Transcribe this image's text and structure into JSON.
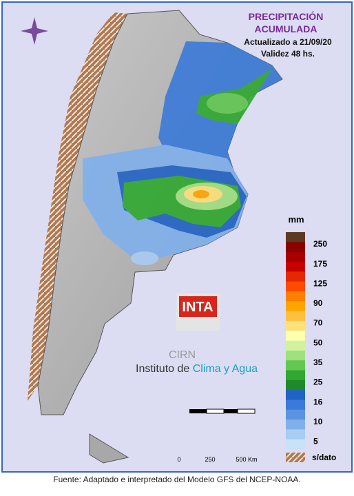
{
  "header": {
    "title_line1": "PRECIPITACIÓN",
    "title_line2": "ACUMULADA",
    "updated": "Actualizado a 21/09/20",
    "validity": "Validez 48 hs."
  },
  "legend": {
    "unit": "mm",
    "labels": [
      "250",
      "175",
      "125",
      "90",
      "70",
      "50",
      "35",
      "25",
      "16",
      "10",
      "5"
    ],
    "colors": [
      "#5c3a21",
      "#8b0000",
      "#a80000",
      "#c80000",
      "#e62800",
      "#ff4a00",
      "#ff7f00",
      "#ffa500",
      "#ffc040",
      "#ffe07a",
      "#ffffb0",
      "#d2f2a0",
      "#a0e080",
      "#62c852",
      "#30a830",
      "#1f8a2a",
      "#2262c4",
      "#3a7ad8",
      "#5a94e0",
      "#80b0ec",
      "#a8ccf2",
      "#c8e2f8"
    ],
    "no_data": "s/dato"
  },
  "scale": {
    "labels": [
      "0",
      "250",
      "500 Km"
    ]
  },
  "logos": {
    "inta": "INTA",
    "cirn": "CIRN",
    "institute_a": "Instituto de ",
    "institute_b": "Clima y Agua"
  },
  "footer": "Fuente: Adaptado e interpretado del Modelo GFS del NCEP-NOAA."
}
